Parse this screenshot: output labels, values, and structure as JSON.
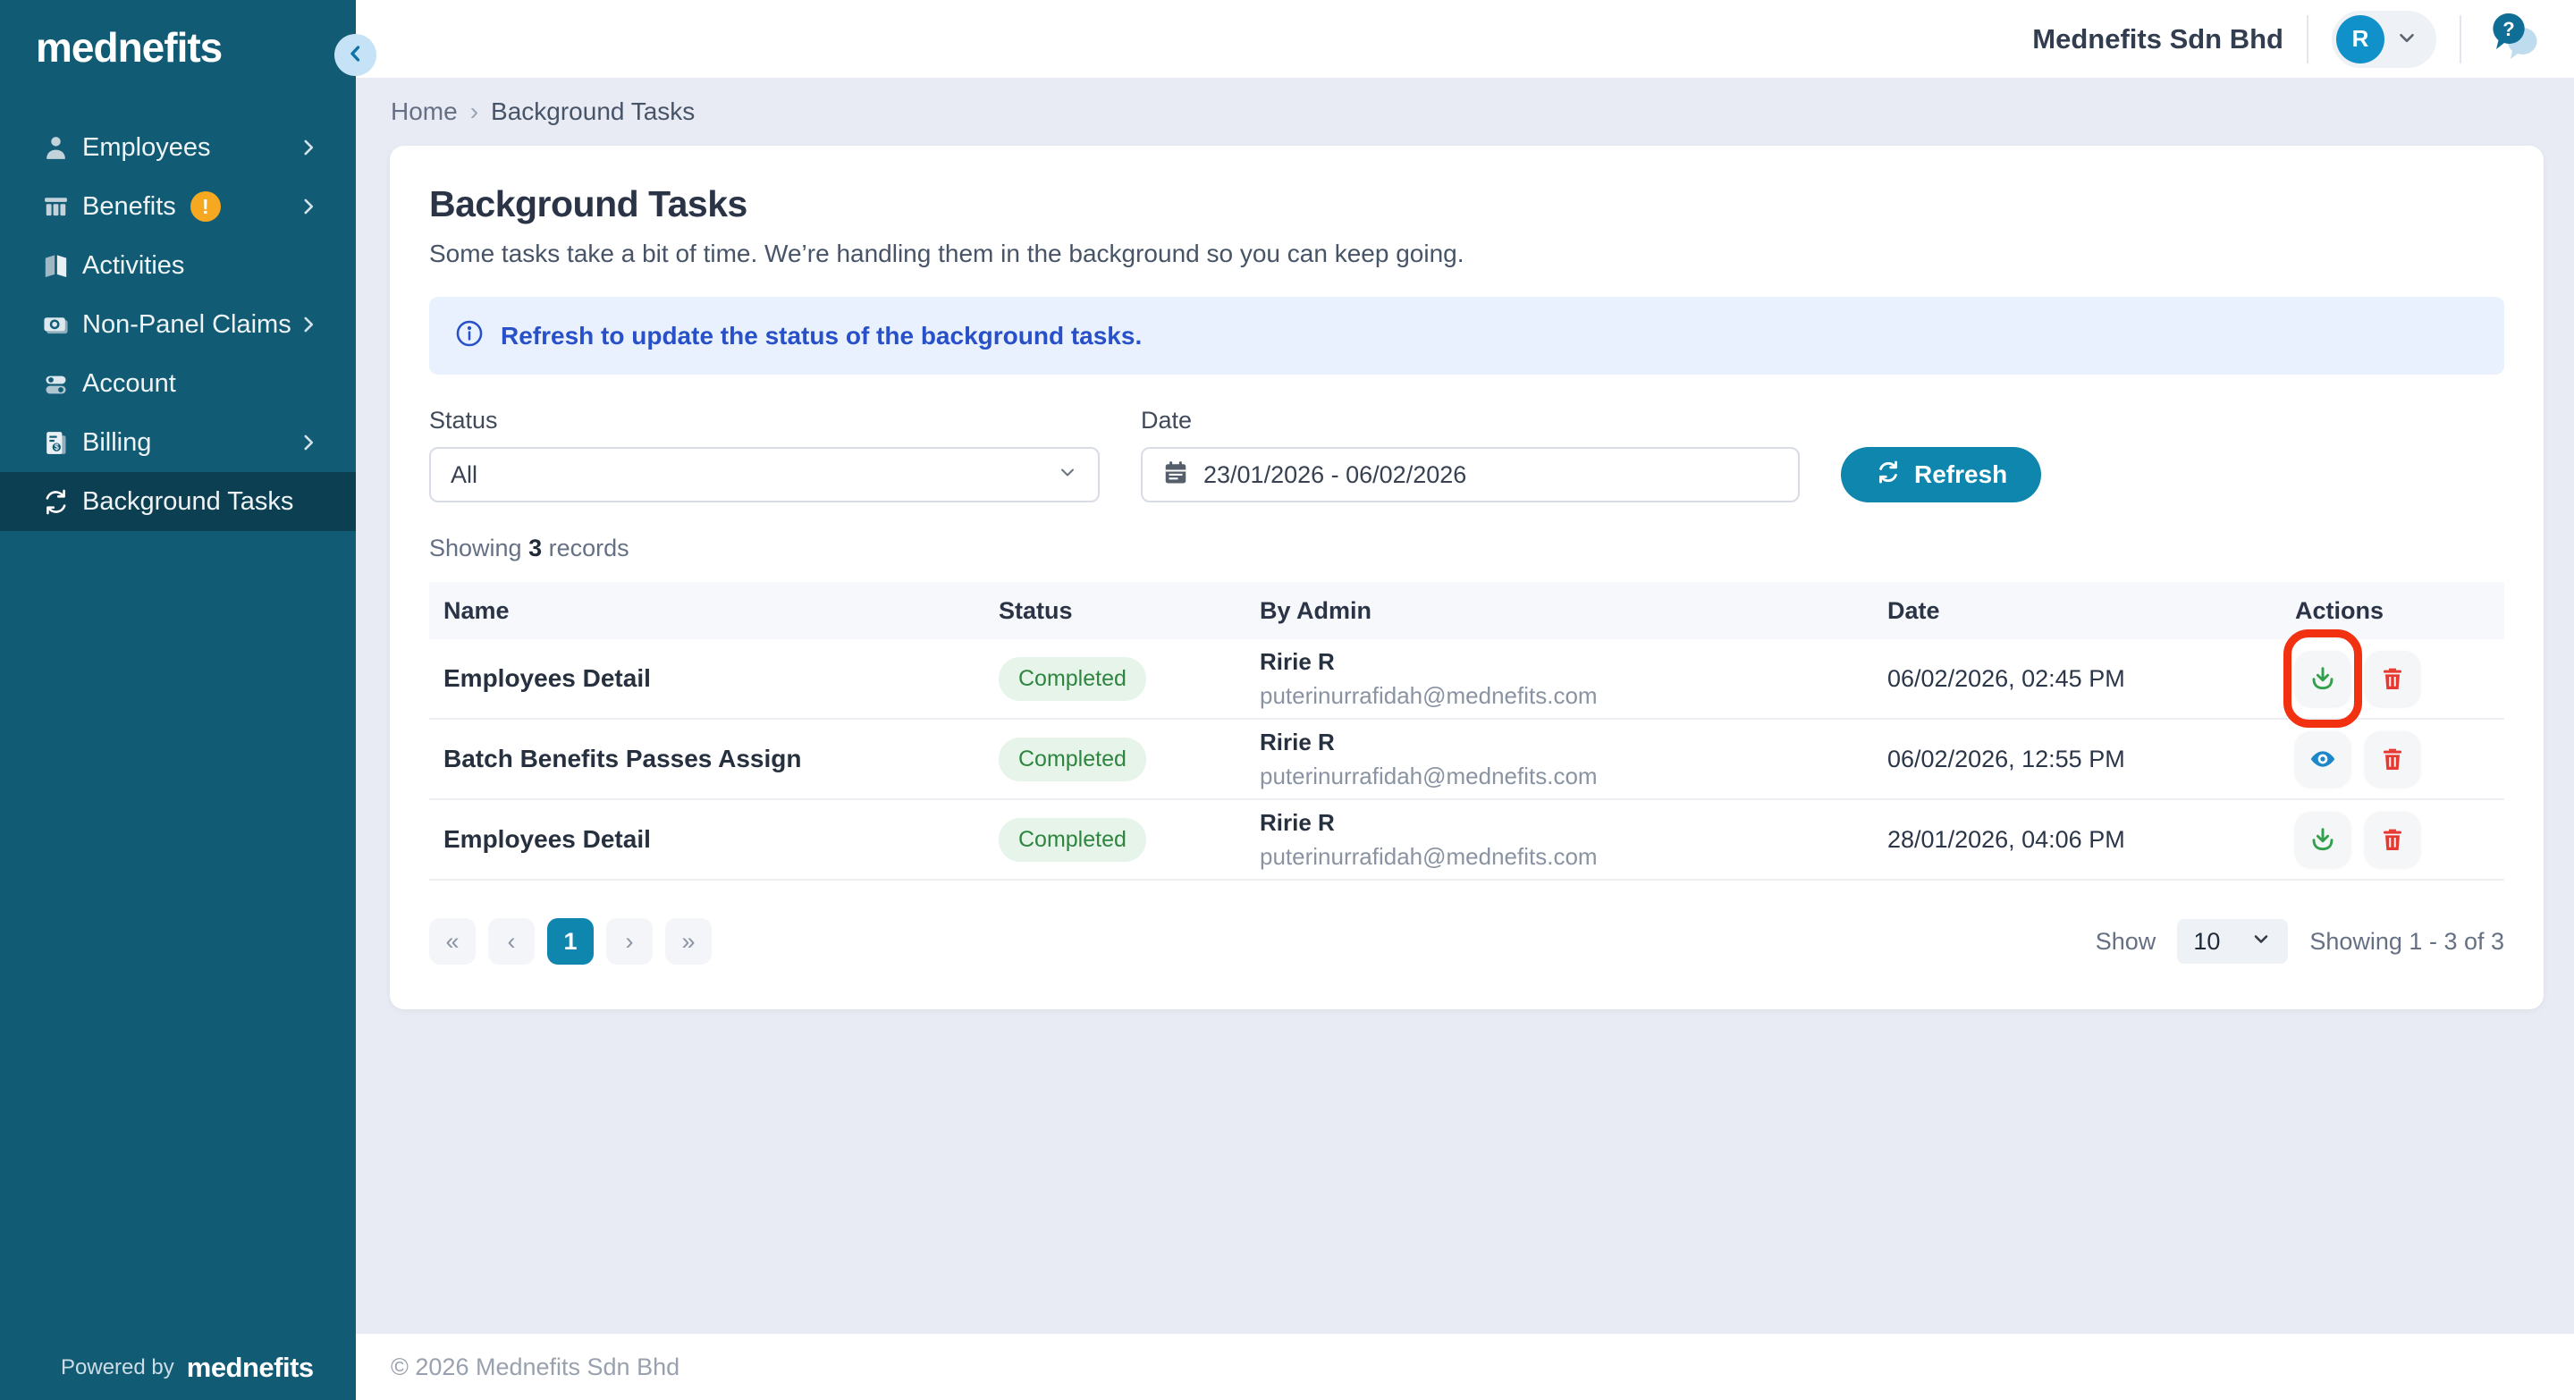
{
  "sidebar": {
    "logo": "mednefits",
    "items": [
      {
        "label": "Employees",
        "icon": "person-icon",
        "chevron": true,
        "active": false
      },
      {
        "label": "Benefits",
        "icon": "bank-icon",
        "chevron": true,
        "badge": "!",
        "active": false
      },
      {
        "label": "Activities",
        "icon": "book-icon",
        "chevron": false,
        "active": false
      },
      {
        "label": "Non-Panel Claims",
        "icon": "cash-icon",
        "chevron": true,
        "active": false
      },
      {
        "label": "Account",
        "icon": "toggles-icon",
        "chevron": false,
        "active": false
      },
      {
        "label": "Billing",
        "icon": "invoice-icon",
        "chevron": true,
        "active": false
      },
      {
        "label": "Background Tasks",
        "icon": "sync-icon",
        "chevron": false,
        "active": true
      }
    ],
    "powered_by": "Powered by",
    "powered_by_brand": "mednefits"
  },
  "header": {
    "company": "Mednefits Sdn Bhd",
    "avatar_initial": "R"
  },
  "breadcrumb": {
    "home": "Home",
    "separator": "›",
    "current": "Background Tasks"
  },
  "page": {
    "title": "Background Tasks",
    "subtitle": "Some tasks take a bit of time. We’re handling them in the background so you can keep going."
  },
  "banner": {
    "text": "Refresh to update the status of the background tasks."
  },
  "filters": {
    "status_label": "Status",
    "status_value": "All",
    "date_label": "Date",
    "date_value": "23/01/2026 - 06/02/2026",
    "refresh_label": "Refresh"
  },
  "summary": {
    "prefix": "Showing",
    "count": "3",
    "suffix": "records"
  },
  "table": {
    "headers": [
      "Name",
      "Status",
      "By Admin",
      "Date",
      "Actions"
    ],
    "rows": [
      {
        "name": "Employees Detail",
        "status": "Completed",
        "admin_name": "Ririe R",
        "admin_email": "puterinurrafidah@mednefits.com",
        "date": "06/02/2026, 02:45 PM",
        "actions": [
          {
            "icon": "download-icon",
            "annotated": true
          },
          {
            "icon": "trash-icon",
            "annotated": false
          }
        ]
      },
      {
        "name": "Batch Benefits Passes Assign",
        "status": "Completed",
        "admin_name": "Ririe R",
        "admin_email": "puterinurrafidah@mednefits.com",
        "date": "06/02/2026, 12:55 PM",
        "actions": [
          {
            "icon": "eye-icon",
            "annotated": false
          },
          {
            "icon": "trash-icon",
            "annotated": false
          }
        ]
      },
      {
        "name": "Employees Detail",
        "status": "Completed",
        "admin_name": "Ririe R",
        "admin_email": "puterinurrafidah@mednefits.com",
        "date": "28/01/2026, 04:06 PM",
        "actions": [
          {
            "icon": "download-icon",
            "annotated": false
          },
          {
            "icon": "trash-icon",
            "annotated": false
          }
        ]
      }
    ]
  },
  "pagination": {
    "first": "«",
    "prev": "‹",
    "pages": [
      "1"
    ],
    "active_page": "1",
    "next": "›",
    "last": "»",
    "show_label": "Show",
    "page_size": "10",
    "range_text": "Showing 1 - 3 of 3"
  },
  "footer": {
    "copyright": "© 2026 Mednefits Sdn Bhd"
  },
  "colors": {
    "sidebar_bg": "#115B75",
    "sidebar_active_bg": "#0C3F52",
    "accent_teal": "#0E86AD",
    "avatar_blue": "#1191C9",
    "banner_bg": "#E8F1FD",
    "banner_text": "#2850C8",
    "badge_bg": "#E6F4E9",
    "badge_text": "#2E8540",
    "download_green": "#33A04C",
    "trash_red": "#E53932",
    "eye_blue": "#1C88C9",
    "annotation_red": "#F23110",
    "warning_badge": "#F6A821",
    "content_bg": "#E9EBF4"
  }
}
